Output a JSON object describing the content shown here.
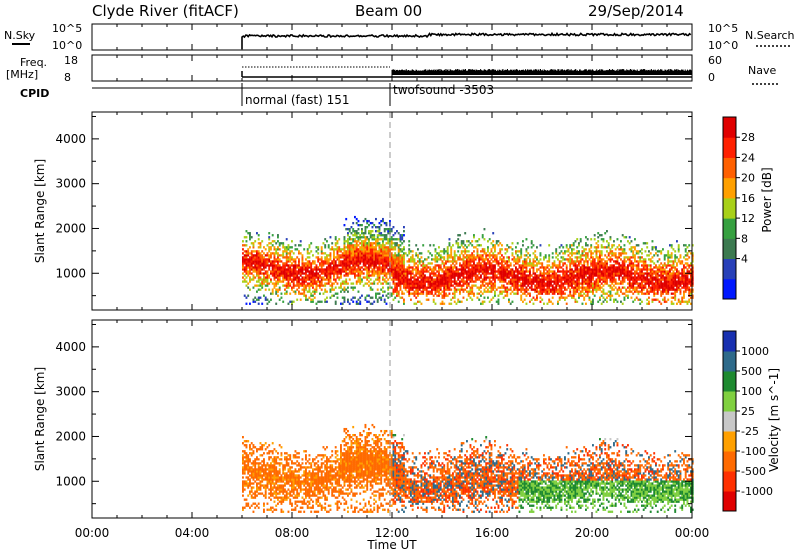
{
  "header": {
    "title": "Clyde River (fitACF)",
    "beam": "Beam 00",
    "date": "29/Sep/2014"
  },
  "noise_panel": {
    "left_label": "N.Sky",
    "left_ticks": [
      "10^5",
      "10^0"
    ],
    "right_label": "N.Search",
    "right_ticks": [
      "10^5",
      "10^0"
    ],
    "start_time": "06:00"
  },
  "freq_panel": {
    "left_label_1": "Freq.",
    "left_label_2": "[MHz]",
    "left_ticks": [
      "18",
      "8"
    ],
    "right_label": "Nave",
    "right_ticks": [
      "60",
      "0"
    ]
  },
  "cpid": {
    "label": "CPID",
    "segments": [
      {
        "start": "06:00",
        "name": "normal (fast) 151"
      },
      {
        "start": "12:00",
        "name": "twofsound -3503"
      }
    ]
  },
  "colors": {
    "power": [
      "#0018ff",
      "#2840b8",
      "#3c7a50",
      "#36a040",
      "#a8d018",
      "#ffa000",
      "#ff6000",
      "#ff2000",
      "#e00000"
    ],
    "velocity": [
      "#e00000",
      "#ff3000",
      "#ff6a00",
      "#ffa000",
      "#c8c8c8",
      "#80d040",
      "#1e8a30",
      "#2e6a8a",
      "#1830b0"
    ]
  },
  "chart_data": [
    {
      "type": "heatmap",
      "name": "power-panel",
      "ylabel": "Slant Range [km]",
      "yticks": [
        1000,
        2000,
        3000,
        4000
      ],
      "ylim": [
        180,
        4600
      ],
      "colorbar_label": "Power [dB]",
      "colorbar_ticks": [
        "28",
        "24",
        "20",
        "16",
        "12",
        "8",
        "4"
      ],
      "data_start": "06:00",
      "marker_time": "12:00"
    },
    {
      "type": "heatmap",
      "name": "velocity-panel",
      "ylabel": "Slant Range [km]",
      "yticks": [
        1000,
        2000,
        3000,
        4000
      ],
      "ylim": [
        180,
        4600
      ],
      "colorbar_label": "Velocity [m s^-1]",
      "colorbar_ticks": [
        "1000",
        "500",
        "100",
        "25",
        "-25",
        "-100",
        "-500",
        "-1000"
      ],
      "data_start": "06:00",
      "marker_time": "12:00"
    }
  ],
  "x_axis": {
    "ticks": [
      "00:00",
      "04:00",
      "08:00",
      "12:00",
      "16:00",
      "20:00",
      "00:00"
    ],
    "label": "Time UT"
  }
}
